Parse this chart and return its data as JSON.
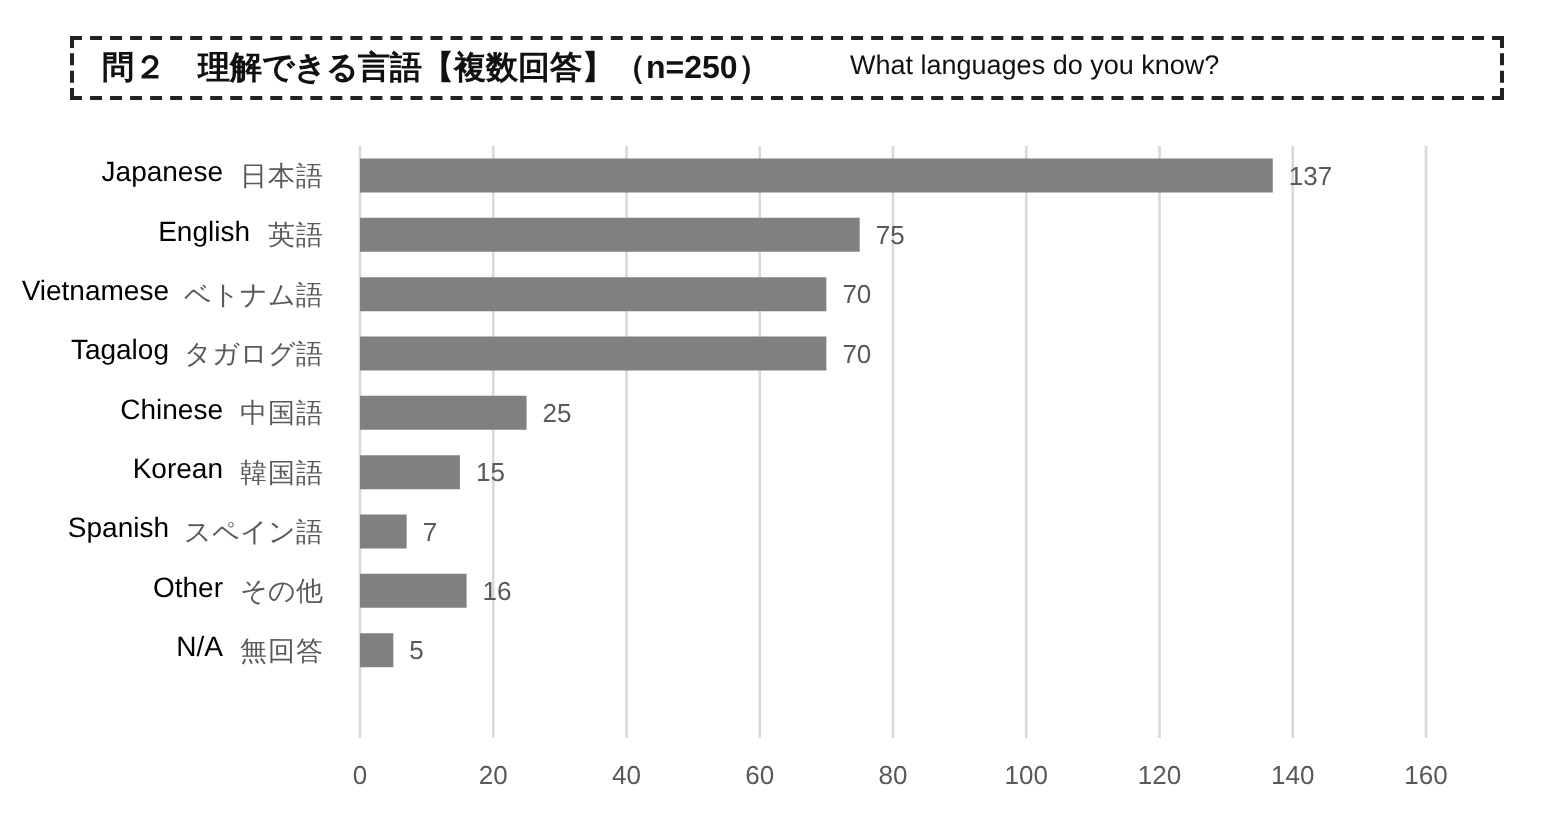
{
  "chart_data": {
    "type": "bar",
    "orientation": "horizontal",
    "title": "問２　理解できる言語【複数回答】（n=250）",
    "subtitle": "What languages do you know?",
    "categories": [
      "日本語",
      "英語",
      "ベトナム語",
      "タガログ語",
      "中国語",
      "韓国語",
      "スペイン語",
      "その他",
      "無回答"
    ],
    "values": [
      137,
      75,
      70,
      70,
      25,
      15,
      7,
      16,
      5
    ],
    "color": "#808080",
    "xlim": [
      0,
      160
    ],
    "xticks": [
      0,
      20,
      40,
      60,
      80,
      100,
      120,
      140,
      160
    ],
    "grid": "x",
    "data_labels": true,
    "annotations": [
      "Japanese",
      "English",
      "Vietnamese",
      "Tagalog",
      "Chinese",
      "Korean",
      "Spanish",
      "Other",
      "N/A"
    ]
  }
}
